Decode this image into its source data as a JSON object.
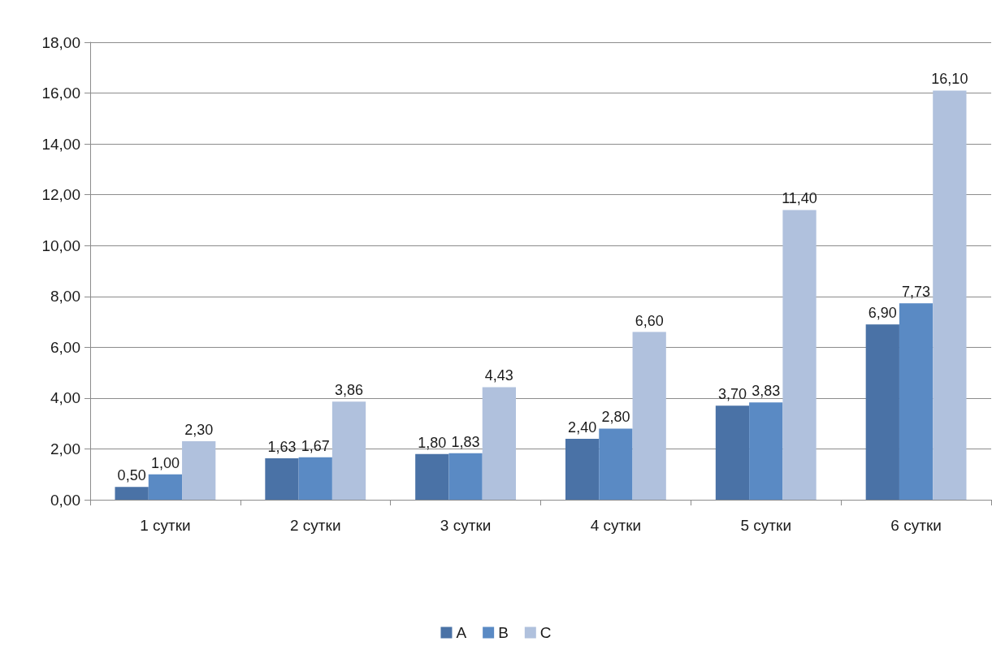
{
  "chart_data": {
    "type": "bar",
    "categories": [
      "1 сутки",
      "2 сутки",
      "3 сутки",
      "4 сутки",
      "5 сутки",
      "6 сутки"
    ],
    "series": [
      {
        "name": "A",
        "color": "#4a72a6",
        "values": [
          0.5,
          1.63,
          1.8,
          2.4,
          3.7,
          6.9
        ],
        "value_labels": [
          "0,50",
          "1,63",
          "1,80",
          "2,40",
          "3,70",
          "6,90"
        ]
      },
      {
        "name": "B",
        "color": "#5a8ac4",
        "values": [
          1.0,
          1.67,
          1.83,
          2.8,
          3.83,
          7.73
        ],
        "value_labels": [
          "1,00",
          "1,67",
          "1,83",
          "2,80",
          "3,83",
          "7,73"
        ]
      },
      {
        "name": "C",
        "color": "#b0c1dd",
        "values": [
          2.3,
          3.86,
          4.43,
          6.6,
          11.4,
          16.1
        ],
        "value_labels": [
          "2,30",
          "3,86",
          "4,43",
          "6,60",
          "11,40",
          "16,10"
        ]
      }
    ],
    "ylim": [
      0,
      18
    ],
    "yticks": [
      {
        "value": 0,
        "label": "0,00"
      },
      {
        "value": 2,
        "label": "2,00"
      },
      {
        "value": 4,
        "label": "4,00"
      },
      {
        "value": 6,
        "label": "6,00"
      },
      {
        "value": 8,
        "label": "8,00"
      },
      {
        "value": 10,
        "label": "10,00"
      },
      {
        "value": 12,
        "label": "12,00"
      },
      {
        "value": 14,
        "label": "14,00"
      },
      {
        "value": 16,
        "label": "16,00"
      },
      {
        "value": 18,
        "label": "18,00"
      }
    ],
    "grid": "y",
    "legend": "bottom"
  }
}
